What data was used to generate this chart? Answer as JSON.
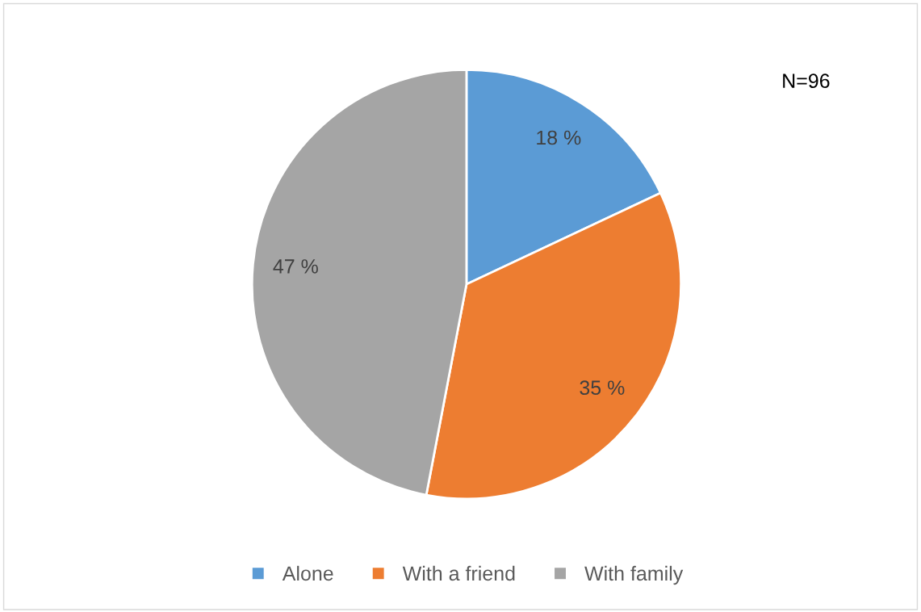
{
  "chart_data": {
    "type": "pie",
    "categories": [
      "Alone",
      "With a friend",
      "With family"
    ],
    "values": [
      18,
      35,
      47
    ],
    "colors": [
      "#5b9bd5",
      "#ed7d31",
      "#a5a5a5"
    ],
    "value_labels": [
      "18 %",
      "35 %",
      "47 %"
    ],
    "annotations": [
      "N=96"
    ],
    "legend": "bottom"
  }
}
